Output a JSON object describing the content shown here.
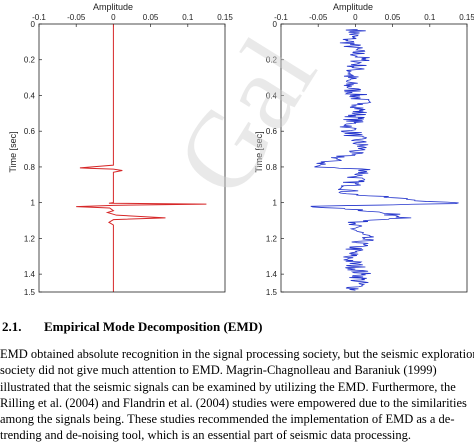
{
  "figure": {
    "watermark_text": "Gal",
    "colors": {
      "left_trace": "#d62728",
      "right_trace": "#2233cc",
      "axis": "#222222"
    },
    "chart_data": [
      {
        "type": "line",
        "title": "",
        "xlabel": "Amplitude",
        "ylabel": "Time [sec]",
        "xlim": [
          -0.1,
          0.15
        ],
        "ylim": [
          0,
          1.5
        ],
        "y_inverted": true,
        "x_axis_position": "top",
        "xtick_labels": [
          "-0.1",
          "-0.05",
          "0",
          "0.05",
          "0.1",
          "0.15"
        ],
        "ytick_labels": [
          "0",
          "0.2",
          "0.4",
          "0.6",
          "0.8",
          "1",
          "1.2",
          "1.4",
          "1.5"
        ],
        "series": [
          {
            "color": "#d62728",
            "points": [
              [
                0,
                0
              ],
              [
                0,
                0.79
              ],
              [
                -0.045,
                0.805
              ],
              [
                -0.03,
                0.808
              ],
              [
                0,
                0.812
              ],
              [
                0.012,
                0.82
              ],
              [
                0,
                0.83
              ],
              [
                0,
                1.0
              ],
              [
                -0.006,
                1.003
              ],
              [
                0.125,
                1.008
              ],
              [
                0,
                1.015
              ],
              [
                -0.05,
                1.022
              ],
              [
                -0.005,
                1.03
              ],
              [
                0,
                1.045
              ],
              [
                -0.008,
                1.055
              ],
              [
                0.004,
                1.07
              ],
              [
                0.07,
                1.085
              ],
              [
                0,
                1.095
              ],
              [
                -0.006,
                1.11
              ],
              [
                0,
                1.125
              ],
              [
                0,
                1.5
              ]
            ]
          },
          {
            "color": "#2233cc",
            "noise_amplitude": 0.015,
            "points": [
              [
                0.003,
                0.03
              ],
              [
                -0.01,
                0.09
              ],
              [
                0.008,
                0.2
              ],
              [
                -0.012,
                0.32
              ],
              [
                0.01,
                0.45
              ],
              [
                -0.008,
                0.58
              ],
              [
                0.009,
                0.7
              ],
              [
                -0.055,
                0.8
              ],
              [
                0.02,
                0.815
              ],
              [
                0.003,
                0.85
              ],
              [
                -0.012,
                0.95
              ],
              [
                0.135,
                1.005
              ],
              [
                -0.06,
                1.02
              ],
              [
                0.01,
                1.04
              ],
              [
                0.075,
                1.085
              ],
              [
                -0.01,
                1.11
              ],
              [
                0.012,
                1.2
              ],
              [
                -0.01,
                1.3
              ],
              [
                0.008,
                1.4
              ],
              [
                0.0,
                1.49
              ]
            ]
          }
        ]
      }
    ]
  },
  "section": {
    "number": "2.1.",
    "title": "Empirical Mode Decomposition (EMD)"
  },
  "body_lines": [
    "EMD obtained absolute recognition in the signal processing society, but the seismic exploration",
    "society did not give much attention to EMD. Magrin-Chagnolleau and Baraniuk (1999)",
    "illustrated that the seismic signals can be examined by utilizing the EMD. Furthermore, the",
    "Rilling et al. (2004) and Flandrin et al. (2004) studies were empowered due to the similarities",
    "among the signals being. These studies recommended the implementation of EMD as a de-",
    "trending and de-noising tool, which is an essential part of seismic data processing."
  ]
}
